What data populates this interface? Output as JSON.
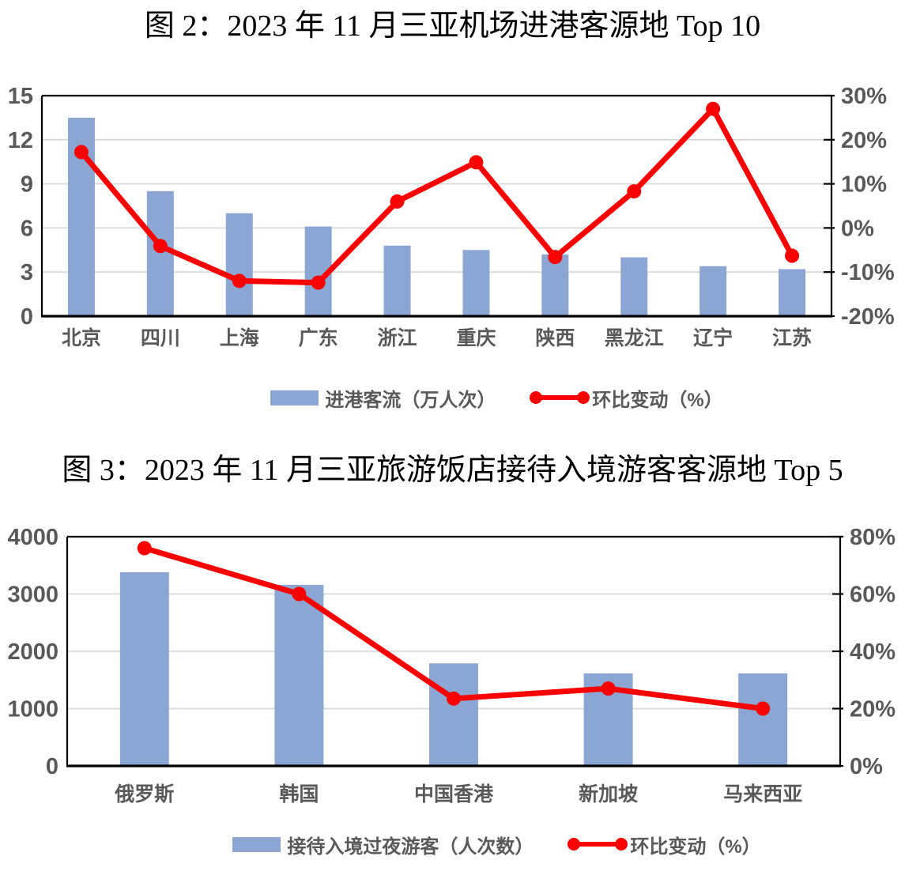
{
  "colors": {
    "bar_blue": "#8CA6D4",
    "line_red": "#FB0000",
    "grid_gray": "#D9D9D9",
    "axis_black": "#000000",
    "label_gray": "#595959",
    "title_black": "#000000"
  },
  "figures": [
    {
      "title": "图 2：2023 年 11 月三亚机场进港客源地 Top 10",
      "legend": [
        {
          "type": "bar",
          "label": "进港客流（万人次）"
        },
        {
          "type": "line",
          "label": "环比变动（%）"
        }
      ],
      "chart_data": {
        "type": "combo-bar-line",
        "categories": [
          "北京",
          "四川",
          "上海",
          "广东",
          "浙江",
          "重庆",
          "陕西",
          "黑龙江",
          "辽宁",
          "江苏"
        ],
        "series": [
          {
            "name": "进港客流（万人次）",
            "type": "bar",
            "axis": "left",
            "values": [
              13.5,
              8.5,
              7.0,
              6.1,
              4.8,
              4.5,
              4.2,
              4.0,
              3.4,
              3.2
            ]
          },
          {
            "name": "环比变动（%）",
            "type": "line",
            "axis": "right",
            "values": [
              17.2,
              -4.1,
              -12.0,
              -12.4,
              6.0,
              14.9,
              -6.6,
              8.3,
              27.0,
              -6.3
            ]
          }
        ],
        "left_axis": {
          "min": 0,
          "max": 15,
          "step": 3,
          "tick_labels": [
            "0",
            "3",
            "6",
            "9",
            "12",
            "15"
          ]
        },
        "right_axis": {
          "min": -20,
          "max": 30,
          "step": 10,
          "tick_labels": [
            "-20%",
            "-10%",
            "0%",
            "10%",
            "20%",
            "30%"
          ]
        },
        "grid": true,
        "legend_position": "bottom"
      }
    },
    {
      "title": "图 3：2023 年 11 月三亚旅游饭店接待入境游客客源地 Top 5",
      "legend": [
        {
          "type": "bar",
          "label": "接待入境过夜游客（人次数）"
        },
        {
          "type": "line",
          "label": "环比变动（%）"
        }
      ],
      "chart_data": {
        "type": "combo-bar-line",
        "categories": [
          "俄罗斯",
          "韩国",
          "中国香港",
          "新加坡",
          "马来西亚"
        ],
        "series": [
          {
            "name": "接待入境过夜游客（人次数）",
            "type": "bar",
            "axis": "left",
            "values": [
              3380,
              3160,
              1790,
              1615,
              1615
            ]
          },
          {
            "name": "环比变动（%）",
            "type": "line",
            "axis": "right",
            "values": [
              76,
              60,
              23.5,
              27,
              20
            ]
          }
        ],
        "left_axis": {
          "min": 0,
          "max": 4000,
          "step": 1000,
          "tick_labels": [
            "0",
            "1000",
            "2000",
            "3000",
            "4000"
          ]
        },
        "right_axis": {
          "min": 0,
          "max": 80,
          "step": 20,
          "tick_labels": [
            "0%",
            "20%",
            "40%",
            "60%",
            "80%"
          ]
        },
        "grid": true,
        "legend_position": "bottom"
      }
    }
  ]
}
